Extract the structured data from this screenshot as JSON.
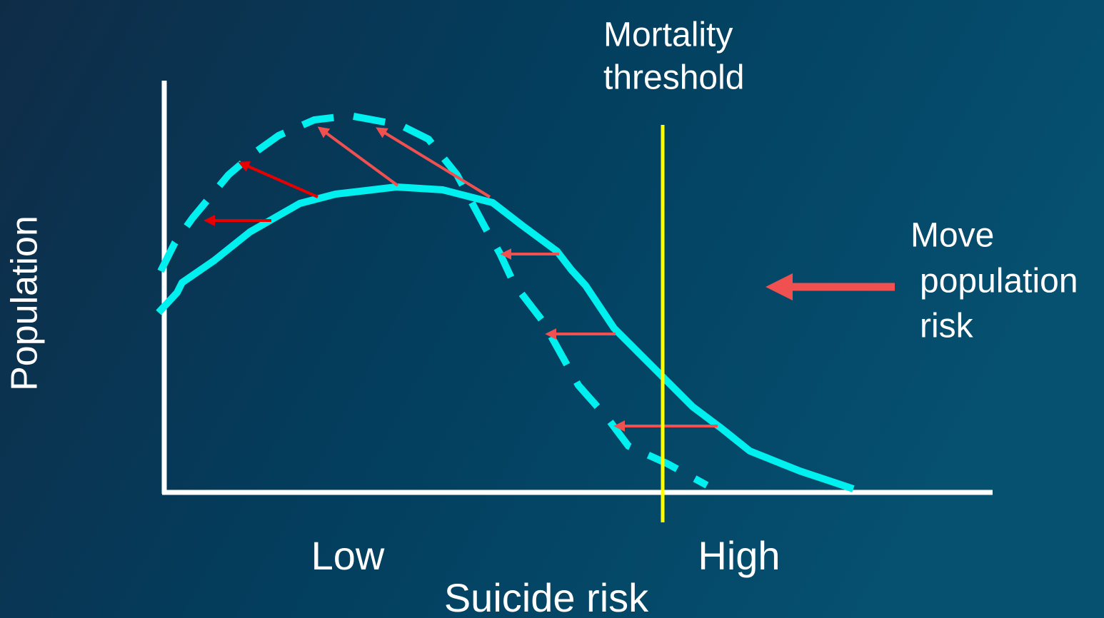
{
  "labels": {
    "threshold": [
      "Mortality",
      "threshold"
    ],
    "y_axis": "Population",
    "x_low": "Low",
    "x_high": "High",
    "x_axis": "Suicide risk",
    "move": [
      "Move",
      "population",
      "risk"
    ]
  }
}
